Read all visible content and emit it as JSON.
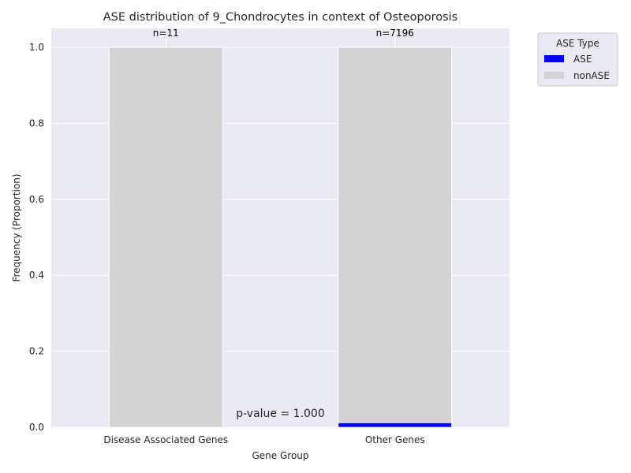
{
  "chart_data": {
    "type": "bar",
    "stacked": true,
    "title": "ASE distribution of 9_Chondrocytes in context of Osteoporosis",
    "xlabel": "Gene Group",
    "ylabel": "Frequency (Proportion)",
    "ylim": [
      0,
      1.05
    ],
    "yticks": [
      "0.0",
      "0.2",
      "0.4",
      "0.6",
      "0.8",
      "1.0"
    ],
    "categories": [
      "Disease Associated Genes",
      "Other Genes"
    ],
    "counts": [
      "n=11",
      "n=7196"
    ],
    "series": [
      {
        "name": "ASE",
        "color": "#0000ff",
        "values": [
          0.0,
          0.012
        ]
      },
      {
        "name": "nonASE",
        "color": "#d3d3d3",
        "values": [
          1.0,
          0.988
        ]
      }
    ],
    "legend": {
      "title": "ASE Type",
      "placement": "outside-top-right"
    },
    "annotation": "p-value = 1.000",
    "grid": true,
    "background": "#eaeaf2"
  }
}
